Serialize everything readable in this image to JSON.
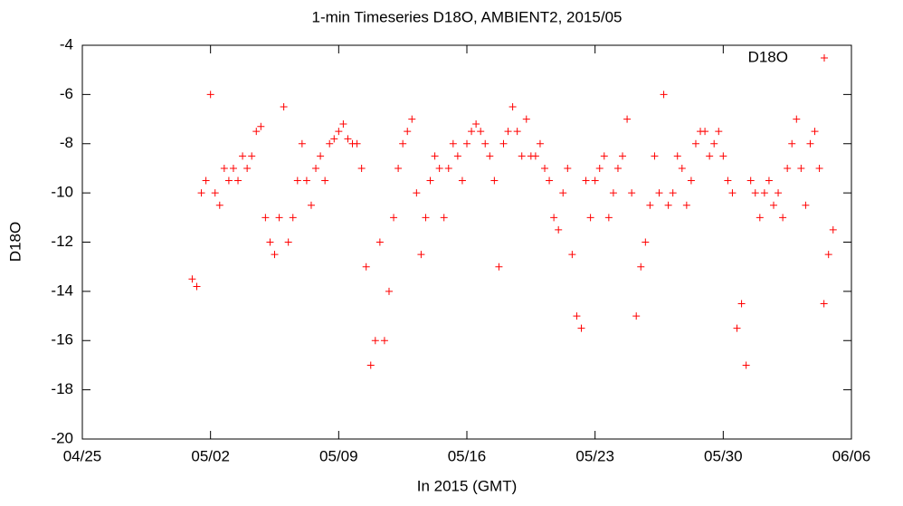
{
  "chart_data": {
    "type": "scatter",
    "title": "1-min Timeseries D18O, AMBIENT2, 2015/05",
    "x_label": "In 2015 (GMT)",
    "y_label": "D18O",
    "xlim": [
      115,
      157
    ],
    "xticks": [
      {
        "value": 115,
        "label": "04/25"
      },
      {
        "value": 122,
        "label": "05/02"
      },
      {
        "value": 129,
        "label": "05/09"
      },
      {
        "value": 136,
        "label": "05/16"
      },
      {
        "value": 143,
        "label": "05/23"
      },
      {
        "value": 150,
        "label": "05/30"
      },
      {
        "value": 157,
        "label": "06/06"
      }
    ],
    "ylim": [
      -20,
      -4
    ],
    "yticks": [
      -20,
      -18,
      -16,
      -14,
      -12,
      -10,
      -8,
      -6,
      -4
    ],
    "legend": "top-right",
    "series": [
      {
        "name": "D18O",
        "color": "#ff0000",
        "x": [
          121,
          121.25,
          121.5,
          121.75,
          122,
          122.25,
          122.5,
          122.75,
          123,
          123.25,
          123.5,
          123.75,
          124,
          124.25,
          124.5,
          124.75,
          125,
          125.25,
          125.5,
          125.75,
          126,
          126.25,
          126.5,
          126.75,
          127,
          127.25,
          127.5,
          127.75,
          128,
          128.25,
          128.5,
          128.75,
          129,
          129.25,
          129.5,
          129.75,
          130,
          130.25,
          130.5,
          130.75,
          131,
          131.25,
          131.5,
          131.75,
          132,
          132.25,
          132.5,
          132.75,
          133,
          133.25,
          133.5,
          133.75,
          134,
          134.25,
          134.5,
          134.75,
          135,
          135.25,
          135.5,
          135.75,
          136,
          136.25,
          136.5,
          136.75,
          137,
          137.25,
          137.5,
          137.75,
          138,
          138.25,
          138.5,
          138.75,
          139,
          139.25,
          139.5,
          139.75,
          140,
          140.25,
          140.5,
          140.75,
          141,
          141.25,
          141.5,
          141.75,
          142,
          142.25,
          142.5,
          142.75,
          143,
          143.25,
          143.5,
          143.75,
          144,
          144.25,
          144.5,
          144.75,
          145,
          145.25,
          145.5,
          145.75,
          146,
          146.25,
          146.5,
          146.75,
          147,
          147.25,
          147.5,
          147.75,
          148,
          148.25,
          148.5,
          148.75,
          149,
          149.25,
          149.5,
          149.75,
          150,
          150.25,
          150.5,
          150.75,
          151,
          151.25,
          151.5,
          151.75,
          152,
          152.25,
          152.5,
          152.75,
          153,
          153.25,
          153.5,
          153.75,
          154,
          154.25,
          154.5,
          154.75,
          155,
          155.25,
          155.5,
          155.75,
          156
        ],
        "values": [
          -13.5,
          -13.8,
          -10,
          -9.5,
          -6,
          -10,
          -10.5,
          -9,
          -9.5,
          -9,
          -9.5,
          -8.5,
          -9,
          -8.5,
          -7.5,
          -7.3,
          -11,
          -12,
          -12.5,
          -11,
          -6.5,
          -12,
          -11,
          -9.5,
          -8,
          -9.5,
          -10.5,
          -9,
          -8.5,
          -9.5,
          -8,
          -7.8,
          -7.5,
          -7.2,
          -7.8,
          -8,
          -8,
          -9,
          -13,
          -17,
          -16,
          -12,
          -16,
          -14,
          -11,
          -9,
          -8,
          -7.5,
          -7,
          -10,
          -12.5,
          -11,
          -9.5,
          -8.5,
          -9,
          -11,
          -9,
          -8,
          -8.5,
          -9.5,
          -8,
          -7.5,
          -7.2,
          -7.5,
          -8,
          -8.5,
          -9.5,
          -13,
          -8,
          -7.5,
          -6.5,
          -7.5,
          -8.5,
          -7,
          -8.5,
          -8.5,
          -8,
          -9,
          -9.5,
          -11,
          -11.5,
          -10,
          -9,
          -12.5,
          -15,
          -15.5,
          -9.5,
          -11,
          -9.5,
          -9,
          -8.5,
          -11,
          -10,
          -9,
          -8.5,
          -7,
          -10,
          -15,
          -13,
          -12,
          -10.5,
          -8.5,
          -10,
          -6,
          -10.5,
          -10,
          -8.5,
          -9,
          -10.5,
          -9.5,
          -8,
          -7.5,
          -7.5,
          -8.5,
          -8,
          -7.5,
          -8.5,
          -9.5,
          -10,
          -15.5,
          -14.5,
          -17,
          -9.5,
          -10,
          -11,
          -10,
          -9.5,
          -10.5,
          -10,
          -11,
          -9,
          -8,
          -7,
          -9,
          -10.5,
          -8,
          -7.5,
          -9,
          -14.5,
          -12.5,
          -11.5
        ]
      }
    ]
  }
}
